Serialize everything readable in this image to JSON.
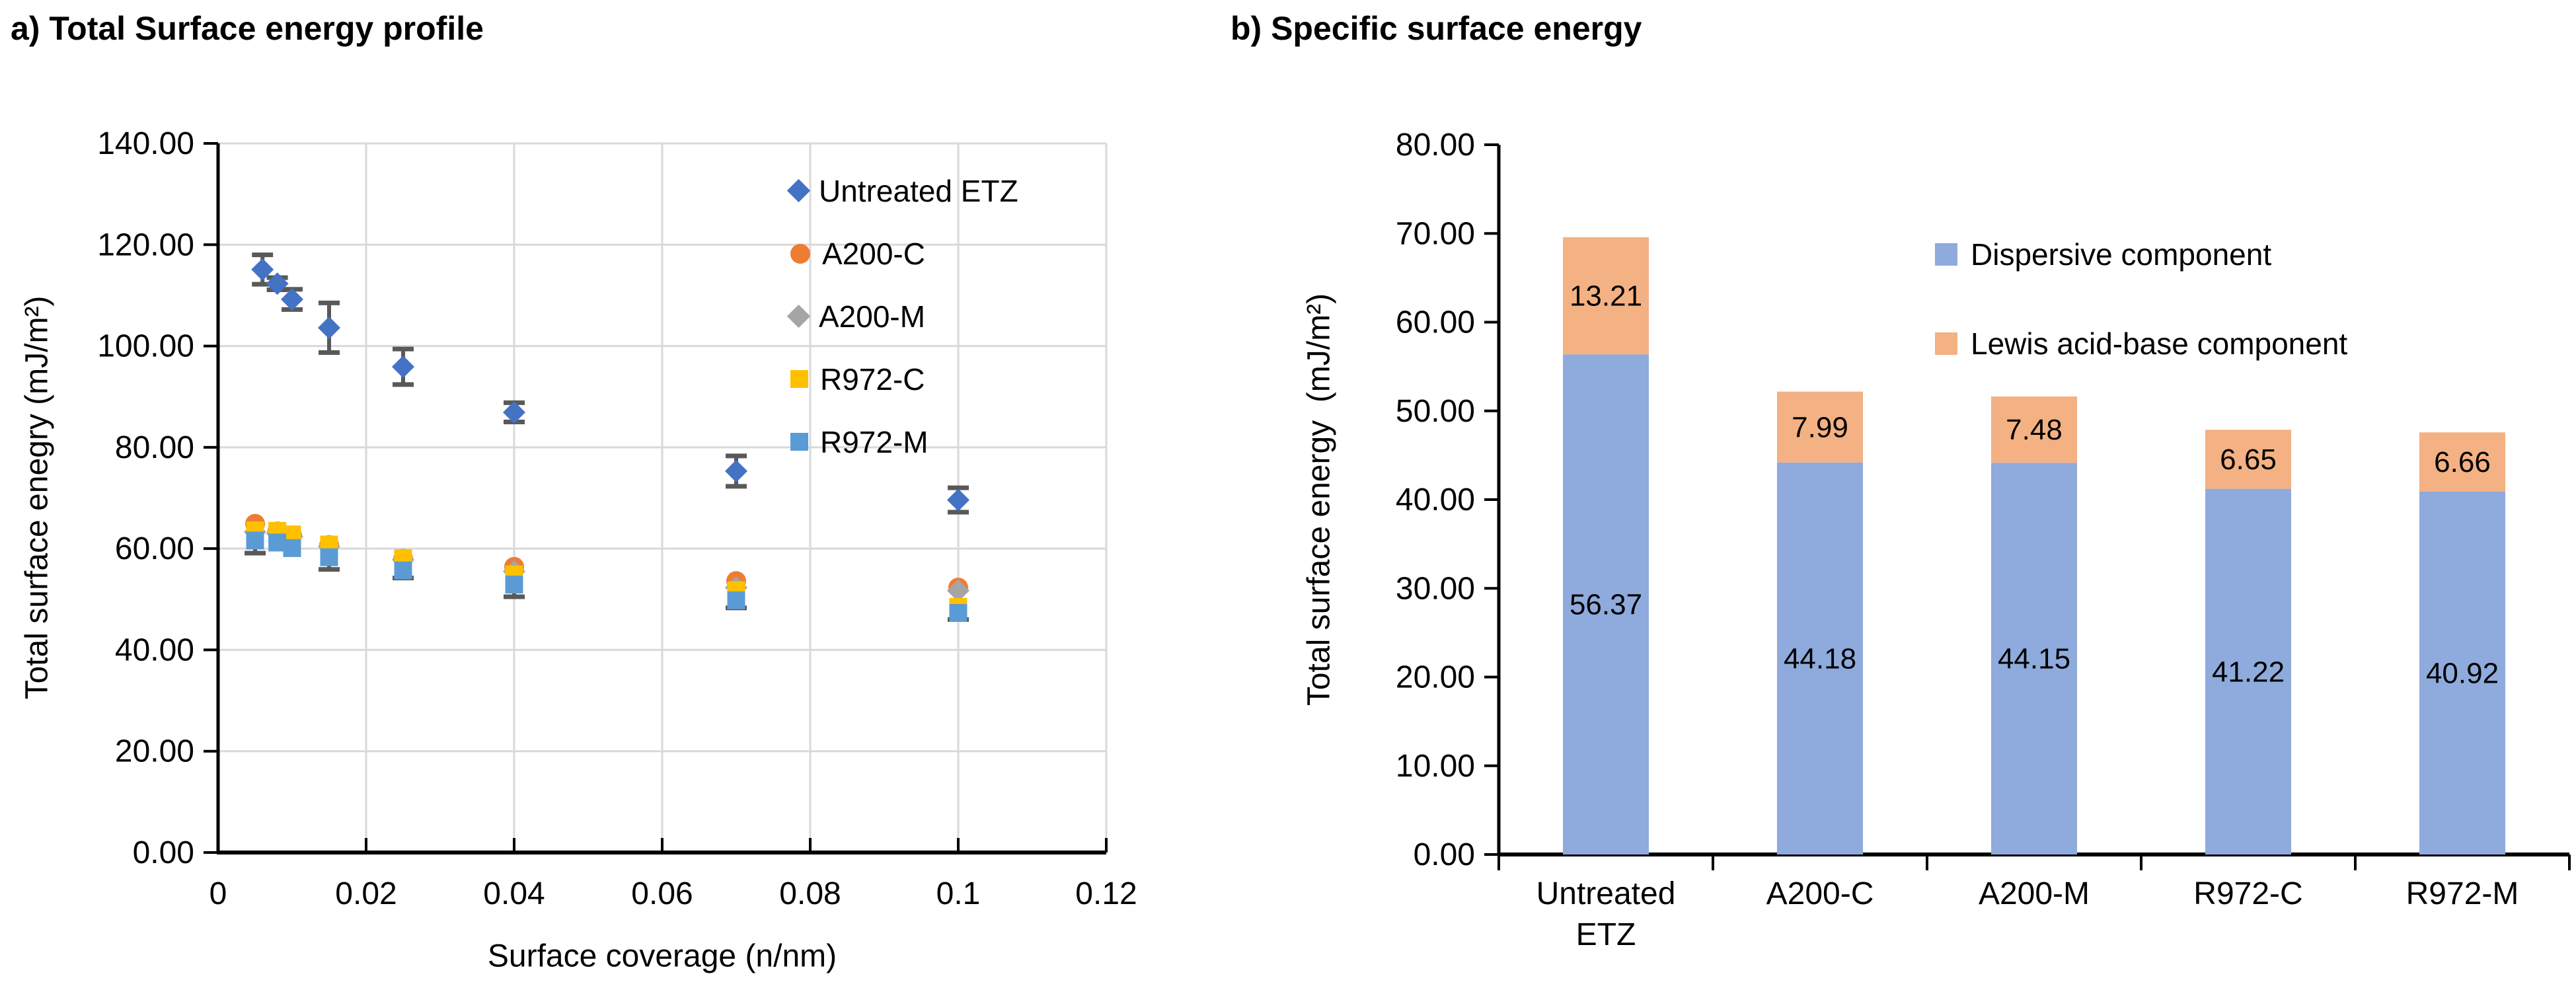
{
  "page": {
    "background": "#FFFFFF"
  },
  "panel_a": {
    "title": "a) Total Surface energy profile",
    "x_axis_label": "Surface coverage (n/nm)",
    "y_axis_label": "Total surface enegry (mJ/m²)"
  },
  "panel_b": {
    "title": "b) Specific surface energy",
    "y_axis_label": "Total surface energy  (mJ/m²)"
  },
  "colors": {
    "axis": "#000000",
    "gridline": "#D9D9D9",
    "error_bar": "#595959",
    "text": "#000000"
  },
  "chart_data": [
    {
      "type": "scatter",
      "panel": "a",
      "title": "a) Total Surface energy profile",
      "xlabel": "Surface coverage (n/nm)",
      "ylabel": "Total surface enegry (mJ/m²)",
      "xlim": [
        0,
        0.12
      ],
      "ylim": [
        0,
        140
      ],
      "x_ticks": [
        0,
        0.02,
        0.04,
        0.06,
        0.08,
        0.1,
        0.12
      ],
      "x_tick_labels": [
        "0",
        "0.02",
        "0.04",
        "0.06",
        "0.08",
        "0.1",
        "0.12"
      ],
      "y_ticks": [
        0,
        20,
        40,
        60,
        80,
        100,
        120,
        140
      ],
      "y_tick_labels": [
        "0.00",
        "20.00",
        "40.00",
        "60.00",
        "80.00",
        "100.00",
        "120.00",
        "140.00"
      ],
      "grid": true,
      "legend_position": "inside-top-right",
      "series": [
        {
          "name": "Untreated ETZ",
          "marker": "diamond",
          "color": "#4472C4",
          "x": [
            0.006,
            0.008,
            0.01,
            0.015,
            0.025,
            0.04,
            0.07,
            0.1
          ],
          "y": [
            115.1,
            112.3,
            109.2,
            103.6,
            95.9,
            86.9,
            75.3,
            69.6
          ],
          "yerr": [
            2.9,
            1.2,
            2.0,
            4.9,
            3.5,
            1.9,
            3.0,
            2.4
          ]
        },
        {
          "name": "A200-C",
          "marker": "circle",
          "color": "#ED7D31",
          "x": [
            0.005,
            0.008,
            0.01,
            0.015,
            0.025,
            0.04,
            0.07,
            0.1
          ],
          "y": [
            64.9,
            63.4,
            62.6,
            60.7,
            58.0,
            56.4,
            53.6,
            52.3
          ]
        },
        {
          "name": "A200-M",
          "marker": "diamond",
          "color": "#A5A5A5",
          "x": [
            0.005,
            0.008,
            0.01,
            0.015,
            0.025,
            0.04,
            0.07,
            0.1
          ],
          "y": [
            63.3,
            63.0,
            62.4,
            60.4,
            57.8,
            55.5,
            52.3,
            51.7
          ]
        },
        {
          "name": "R972-C",
          "marker": "square",
          "color": "#FFC000",
          "x": [
            0.005,
            0.008,
            0.01,
            0.015,
            0.025,
            0.04,
            0.07,
            0.1
          ],
          "y": [
            63.6,
            63.5,
            62.8,
            60.8,
            58.1,
            54.9,
            51.8,
            48.5
          ]
        },
        {
          "name": "R972-M",
          "marker": "square",
          "color": "#5B9BD5",
          "x": [
            0.005,
            0.008,
            0.01,
            0.015,
            0.025,
            0.04,
            0.07,
            0.1
          ],
          "y": [
            61.6,
            61.2,
            60.1,
            58.3,
            55.7,
            52.9,
            49.8,
            47.3
          ],
          "yerr_minus": [
            2.5,
            0,
            0,
            2.4,
            1.5,
            2.4,
            1.5,
            1.3
          ]
        }
      ]
    },
    {
      "type": "bar",
      "stacked": true,
      "panel": "b",
      "title": "b) Specific surface energy",
      "xlabel": "",
      "ylabel": "Total surface energy  (mJ/m²)",
      "ylim": [
        0,
        80
      ],
      "y_ticks": [
        0,
        10,
        20,
        30,
        40,
        50,
        60,
        70,
        80
      ],
      "y_tick_labels": [
        "0.00",
        "10.00",
        "20.00",
        "30.00",
        "40.00",
        "50.00",
        "60.00",
        "70.00",
        "80.00"
      ],
      "grid": false,
      "data_labels": true,
      "legend_position": "inside-top-right",
      "categories": [
        "Untreated ETZ",
        "A200-C",
        "A200-M",
        "R972-C",
        "R972-M"
      ],
      "category_tick_labels": [
        [
          "Untreated",
          "ETZ"
        ],
        [
          "A200-C"
        ],
        [
          "A200-M"
        ],
        [
          "R972-C"
        ],
        [
          "R972-M"
        ]
      ],
      "series": [
        {
          "name": "Dispersive component",
          "color": "#8FAADC",
          "values": [
            56.37,
            44.18,
            44.15,
            41.22,
            40.92
          ]
        },
        {
          "name": "Lewis acid-base component",
          "color": "#F4B183",
          "values": [
            13.21,
            7.99,
            7.48,
            6.65,
            6.66
          ]
        }
      ]
    }
  ]
}
